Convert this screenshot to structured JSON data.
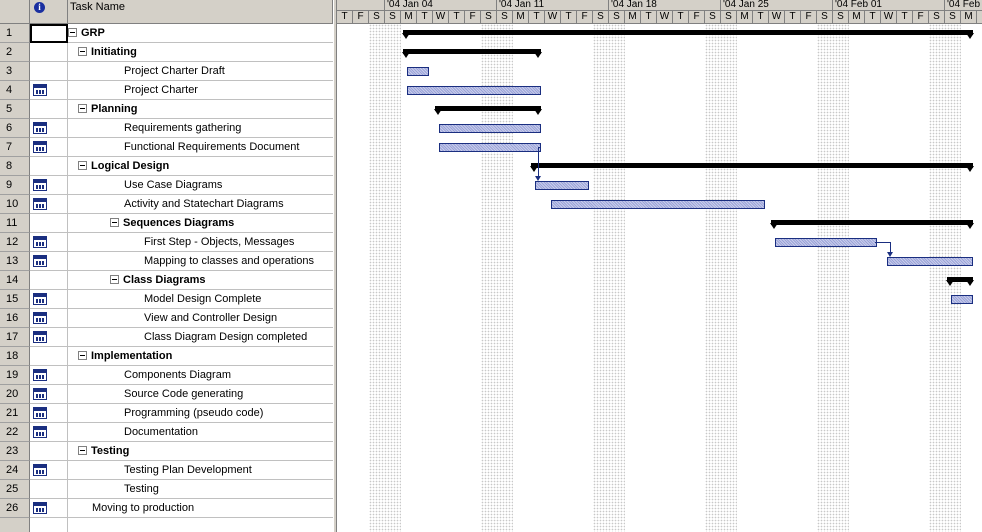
{
  "columns": {
    "indicator_icon": "info-icon",
    "task_name": "Task Name"
  },
  "timescale": {
    "weeks": [
      "'04 Jan 04",
      "'04 Jan 11",
      "'04 Jan 18",
      "'04 Jan 25",
      "'04 Feb 01",
      "'04 Feb"
    ],
    "days": [
      "T",
      "F",
      "S",
      "S",
      "M",
      "T",
      "W",
      "T",
      "F",
      "S",
      "S",
      "M",
      "T",
      "W",
      "T",
      "F",
      "S",
      "S",
      "M",
      "T",
      "W",
      "T",
      "F",
      "S",
      "S",
      "M",
      "T",
      "W",
      "T",
      "F",
      "S",
      "S",
      "M",
      "T",
      "W",
      "T",
      "F",
      "S",
      "S",
      "M"
    ]
  },
  "tasks": [
    {
      "id": "1",
      "name": "GRP",
      "indent": 0,
      "summary": true,
      "icon": false
    },
    {
      "id": "2",
      "name": "Initiating",
      "indent": 1,
      "summary": true,
      "icon": false
    },
    {
      "id": "3",
      "name": "Project Charter Draft",
      "indent": 2,
      "summary": false,
      "icon": false
    },
    {
      "id": "4",
      "name": "Project Charter",
      "indent": 2,
      "summary": false,
      "icon": true
    },
    {
      "id": "5",
      "name": "Planning",
      "indent": 1,
      "summary": true,
      "icon": false
    },
    {
      "id": "6",
      "name": "Requirements gathering",
      "indent": 2,
      "summary": false,
      "icon": true
    },
    {
      "id": "7",
      "name": "Functional Requirements Document",
      "indent": 2,
      "summary": false,
      "icon": true
    },
    {
      "id": "8",
      "name": "Logical Design",
      "indent": 1,
      "summary": true,
      "icon": false
    },
    {
      "id": "9",
      "name": "Use Case Diagrams",
      "indent": 2,
      "summary": false,
      "icon": true
    },
    {
      "id": "10",
      "name": "Activity and Statechart Diagrams",
      "indent": 2,
      "summary": false,
      "icon": true
    },
    {
      "id": "11",
      "name": "Sequences Diagrams",
      "indent": 2,
      "summary": true,
      "icon": false
    },
    {
      "id": "12",
      "name": "First Step - Objects, Messages",
      "indent": 3,
      "summary": false,
      "icon": true
    },
    {
      "id": "13",
      "name": "Mapping to classes and operations",
      "indent": 3,
      "summary": false,
      "icon": true
    },
    {
      "id": "14",
      "name": "Class Diagrams",
      "indent": 2,
      "summary": true,
      "icon": false
    },
    {
      "id": "15",
      "name": "Model Design Complete",
      "indent": 3,
      "summary": false,
      "icon": true
    },
    {
      "id": "16",
      "name": "View and Controller Design",
      "indent": 3,
      "summary": false,
      "icon": true
    },
    {
      "id": "17",
      "name": "Class  Diagram Design completed",
      "indent": 3,
      "summary": false,
      "icon": true
    },
    {
      "id": "18",
      "name": "Implementation",
      "indent": 1,
      "summary": true,
      "icon": false
    },
    {
      "id": "19",
      "name": "Components Diagram",
      "indent": 2,
      "summary": false,
      "icon": true
    },
    {
      "id": "20",
      "name": "Source Code generating",
      "indent": 2,
      "summary": false,
      "icon": true
    },
    {
      "id": "21",
      "name": "Programming (pseudo code)",
      "indent": 2,
      "summary": false,
      "icon": true
    },
    {
      "id": "22",
      "name": "Documentation",
      "indent": 2,
      "summary": false,
      "icon": true
    },
    {
      "id": "23",
      "name": "Testing",
      "indent": 1,
      "summary": true,
      "icon": false
    },
    {
      "id": "24",
      "name": "Testing Plan Development",
      "indent": 2,
      "summary": false,
      "icon": true
    },
    {
      "id": "25",
      "name": "Testing",
      "indent": 2,
      "summary": false,
      "icon": false
    },
    {
      "id": "26",
      "name": "Moving to production",
      "indent": 1,
      "summary": false,
      "icon": true
    }
  ],
  "bars": [
    {
      "task": "1",
      "type": "summary",
      "start": "2004-01-05",
      "end": "2004-02-09"
    },
    {
      "task": "2",
      "type": "summary",
      "start": "2004-01-05",
      "end": "2004-01-13"
    },
    {
      "task": "3",
      "type": "task",
      "start": "2004-01-05",
      "end": "2004-01-06"
    },
    {
      "task": "4",
      "type": "task",
      "start": "2004-01-05",
      "end": "2004-01-13"
    },
    {
      "task": "5",
      "type": "summary",
      "start": "2004-01-07",
      "end": "2004-01-13"
    },
    {
      "task": "6",
      "type": "task",
      "start": "2004-01-07",
      "end": "2004-01-13"
    },
    {
      "task": "7",
      "type": "task",
      "start": "2004-01-07",
      "end": "2004-01-13"
    },
    {
      "task": "8",
      "type": "summary",
      "start": "2004-01-13",
      "end": "2004-02-09"
    },
    {
      "task": "9",
      "type": "task",
      "start": "2004-01-13",
      "end": "2004-01-16"
    },
    {
      "task": "10",
      "type": "task",
      "start": "2004-01-14",
      "end": "2004-01-27"
    },
    {
      "task": "11",
      "type": "summary",
      "start": "2004-01-28",
      "end": "2004-02-09"
    },
    {
      "task": "12",
      "type": "task",
      "start": "2004-01-28",
      "end": "2004-02-03"
    },
    {
      "task": "13",
      "type": "task",
      "start": "2004-02-04",
      "end": "2004-02-09"
    },
    {
      "task": "14",
      "type": "summary",
      "start": "2004-02-08",
      "end": "2004-02-09"
    },
    {
      "task": "15",
      "type": "task",
      "start": "2004-02-08",
      "end": "2004-02-09"
    }
  ],
  "links": [
    {
      "from": "7",
      "to": "9"
    },
    {
      "from": "12",
      "to": "13"
    }
  ]
}
